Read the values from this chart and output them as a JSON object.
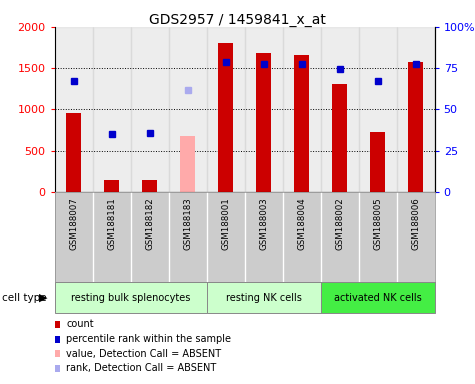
{
  "title": "GDS2957 / 1459841_x_at",
  "samples": [
    "GSM188007",
    "GSM188181",
    "GSM188182",
    "GSM188183",
    "GSM188001",
    "GSM188003",
    "GSM188004",
    "GSM188002",
    "GSM188005",
    "GSM188006"
  ],
  "count_values": [
    960,
    150,
    150,
    null,
    1800,
    1680,
    1660,
    1310,
    730,
    1580
  ],
  "count_absent": [
    null,
    null,
    null,
    680,
    null,
    null,
    null,
    null,
    null,
    null
  ],
  "percentile_values": [
    1340,
    700,
    715,
    null,
    1570,
    1545,
    1545,
    1490,
    1340,
    1545
  ],
  "percentile_absent": [
    null,
    null,
    null,
    1240,
    null,
    null,
    null,
    null,
    null,
    null
  ],
  "groups": [
    {
      "label": "resting bulk splenocytes",
      "indices": [
        0,
        1,
        2,
        3
      ],
      "color": "#ccffcc"
    },
    {
      "label": "resting NK cells",
      "indices": [
        4,
        5,
        6
      ],
      "color": "#ccffcc"
    },
    {
      "label": "activated NK cells",
      "indices": [
        7,
        8,
        9
      ],
      "color": "#66ff66"
    }
  ],
  "bar_width": 0.4,
  "ylim_left": [
    0,
    2000
  ],
  "left_ticks": [
    0,
    500,
    1000,
    1500,
    2000
  ],
  "right_ticks": [
    0,
    25,
    50,
    75,
    100
  ],
  "right_tick_labels": [
    "0",
    "25",
    "50",
    "75",
    "100%"
  ],
  "color_bar_present": "#cc0000",
  "color_bar_absent": "#ffaaaa",
  "color_dot_present": "#0000cc",
  "color_dot_absent": "#aaaaee",
  "bar_sample_bg": "#cccccc",
  "group_bg_1": "#ccffcc",
  "group_bg_2": "#44ee44",
  "cell_type_label": "cell type",
  "legend_items": [
    {
      "color": "#cc0000",
      "label": "count",
      "marker": "s"
    },
    {
      "color": "#0000cc",
      "label": "percentile rank within the sample",
      "marker": "s"
    },
    {
      "color": "#ffaaaa",
      "label": "value, Detection Call = ABSENT",
      "marker": "s"
    },
    {
      "color": "#aaaaee",
      "label": "rank, Detection Call = ABSENT",
      "marker": "s"
    }
  ]
}
